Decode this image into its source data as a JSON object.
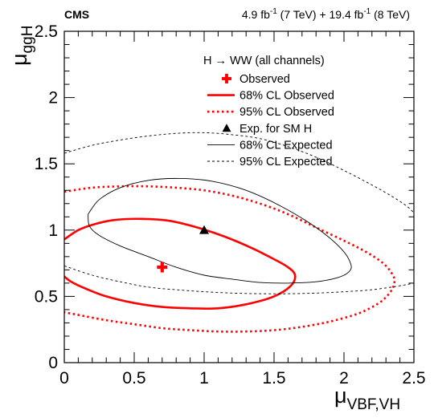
{
  "chart_data": {
    "type": "contour",
    "experiment": "CMS",
    "lumi": {
      "val1": "4.9 fb",
      "exp1": "-1",
      "energy1": " (7 TeV) + 19.4 fb",
      "exp2": "-1",
      "energy2": " (8 TeV)"
    },
    "xlabel": {
      "main": "μ",
      "sub": "VBF,VH"
    },
    "ylabel": {
      "main": "μ",
      "sub": "ggH"
    },
    "xlim": [
      0,
      2.5
    ],
    "ylim": [
      0,
      2.5
    ],
    "xticks": [
      0,
      0.5,
      1,
      1.5,
      2,
      2.5
    ],
    "xtick_labels": [
      "0",
      "0.5",
      "1",
      "1.5",
      "2",
      "2.5"
    ],
    "yticks": [
      0,
      0.5,
      1,
      1.5,
      2,
      2.5
    ],
    "ytick_labels": [
      "0",
      "0.5",
      "1",
      "1.5",
      "2",
      "2.5"
    ],
    "x_minor_step": 0.1,
    "y_minor_step": 0.1,
    "grid": false,
    "legend_header": "H → WW (all channels)",
    "legend_position": "top-right",
    "legend": [
      {
        "label": "Observed",
        "kind": "marker",
        "marker": "cross",
        "color": "#ff0000"
      },
      {
        "label": "68% CL Observed",
        "kind": "line",
        "style": "solid",
        "width": 2.6,
        "color": "#ff0000"
      },
      {
        "label": "95% CL Observed",
        "kind": "line",
        "style": "dotted",
        "width": 2.6,
        "color": "#ff0000"
      },
      {
        "label": "Exp. for SM H",
        "kind": "marker",
        "marker": "triangle",
        "color": "#000000"
      },
      {
        "label": "68% CL Expected",
        "kind": "line",
        "style": "solid",
        "width": 0.9,
        "color": "#000000"
      },
      {
        "label": "95% CL Expected",
        "kind": "line",
        "style": "dashed",
        "width": 0.9,
        "color": "#000000"
      }
    ],
    "points": {
      "observed": {
        "x": 0.7,
        "y": 0.72
      },
      "expected_sm": {
        "x": 1.0,
        "y": 1.0
      }
    },
    "contours": [
      {
        "name": "68% CL Observed",
        "color": "#ff0000",
        "style": "solid",
        "width": 2.6,
        "points": [
          [
            0,
            0.93
          ],
          [
            0.1,
            1.0
          ],
          [
            0.2,
            1.04
          ],
          [
            0.35,
            1.075
          ],
          [
            0.55,
            1.085
          ],
          [
            0.75,
            1.07
          ],
          [
            0.95,
            1.02
          ],
          [
            1.15,
            0.95
          ],
          [
            1.35,
            0.86
          ],
          [
            1.5,
            0.78
          ],
          [
            1.6,
            0.72
          ],
          [
            1.65,
            0.66
          ],
          [
            1.62,
            0.58
          ],
          [
            1.5,
            0.5
          ],
          [
            1.3,
            0.44
          ],
          [
            1.1,
            0.41
          ],
          [
            0.9,
            0.41
          ],
          [
            0.7,
            0.42
          ],
          [
            0.5,
            0.45
          ],
          [
            0.3,
            0.5
          ],
          [
            0.15,
            0.56
          ],
          [
            0.05,
            0.61
          ],
          [
            0,
            0.65
          ]
        ]
      },
      {
        "name": "95% CL Observed",
        "color": "#ff0000",
        "style": "dotted",
        "width": 2.6,
        "points": [
          [
            0,
            1.29
          ],
          [
            0.2,
            1.32
          ],
          [
            0.4,
            1.33
          ],
          [
            0.6,
            1.33
          ],
          [
            0.8,
            1.32
          ],
          [
            1.0,
            1.3
          ],
          [
            1.2,
            1.26
          ],
          [
            1.4,
            1.2
          ],
          [
            1.6,
            1.12
          ],
          [
            1.8,
            1.02
          ],
          [
            2.0,
            0.92
          ],
          [
            2.15,
            0.84
          ],
          [
            2.28,
            0.75
          ],
          [
            2.35,
            0.66
          ],
          [
            2.36,
            0.6
          ],
          [
            2.33,
            0.53
          ],
          [
            2.25,
            0.45
          ],
          [
            2.1,
            0.37
          ],
          [
            1.9,
            0.31
          ],
          [
            1.7,
            0.27
          ],
          [
            1.5,
            0.245
          ],
          [
            1.3,
            0.235
          ],
          [
            1.1,
            0.235
          ],
          [
            0.9,
            0.245
          ],
          [
            0.7,
            0.26
          ],
          [
            0.5,
            0.29
          ],
          [
            0.3,
            0.32
          ],
          [
            0.1,
            0.36
          ],
          [
            0,
            0.38
          ]
        ]
      },
      {
        "name": "68% CL Expected",
        "color": "#000000",
        "style": "solid",
        "width": 0.9,
        "points": [
          [
            0.17,
            1.12
          ],
          [
            0.25,
            1.23
          ],
          [
            0.4,
            1.32
          ],
          [
            0.6,
            1.375
          ],
          [
            0.82,
            1.39
          ],
          [
            1.05,
            1.37
          ],
          [
            1.3,
            1.3
          ],
          [
            1.55,
            1.18
          ],
          [
            1.8,
            1.02
          ],
          [
            1.98,
            0.86
          ],
          [
            2.05,
            0.74
          ],
          [
            2.03,
            0.68
          ],
          [
            1.95,
            0.64
          ],
          [
            1.8,
            0.61
          ],
          [
            1.6,
            0.6
          ],
          [
            1.4,
            0.605
          ],
          [
            1.2,
            0.63
          ],
          [
            1.0,
            0.66
          ],
          [
            0.8,
            0.72
          ],
          [
            0.6,
            0.8
          ],
          [
            0.4,
            0.88
          ],
          [
            0.25,
            0.96
          ],
          [
            0.18,
            1.03
          ],
          [
            0.17,
            1.12
          ]
        ]
      },
      {
        "name": "95% CL Expected",
        "color": "#000000",
        "style": "dashed",
        "width": 0.9,
        "points": [
          [
            0,
            1.58
          ],
          [
            0.2,
            1.64
          ],
          [
            0.4,
            1.68
          ],
          [
            0.6,
            1.71
          ],
          [
            0.8,
            1.73
          ],
          [
            1.0,
            1.735
          ],
          [
            1.2,
            1.72
          ],
          [
            1.4,
            1.69
          ],
          [
            1.6,
            1.63
          ],
          [
            1.8,
            1.55
          ],
          [
            2.0,
            1.45
          ],
          [
            2.2,
            1.34
          ],
          [
            2.35,
            1.25
          ],
          [
            2.45,
            1.18
          ],
          [
            2.5,
            1.13
          ]
        ]
      },
      {
        "name": "95% CL Expected (lower)",
        "color": "#000000",
        "style": "dashed",
        "width": 0.9,
        "points": [
          [
            0,
            0.73
          ],
          [
            0.2,
            0.66
          ],
          [
            0.4,
            0.61
          ],
          [
            0.6,
            0.57
          ],
          [
            0.8,
            0.55
          ],
          [
            1.0,
            0.535
          ],
          [
            1.2,
            0.525
          ],
          [
            1.4,
            0.52
          ],
          [
            1.6,
            0.52
          ],
          [
            1.8,
            0.525
          ],
          [
            2.0,
            0.535
          ],
          [
            2.2,
            0.55
          ],
          [
            2.4,
            0.58
          ],
          [
            2.5,
            0.6
          ]
        ]
      }
    ]
  }
}
